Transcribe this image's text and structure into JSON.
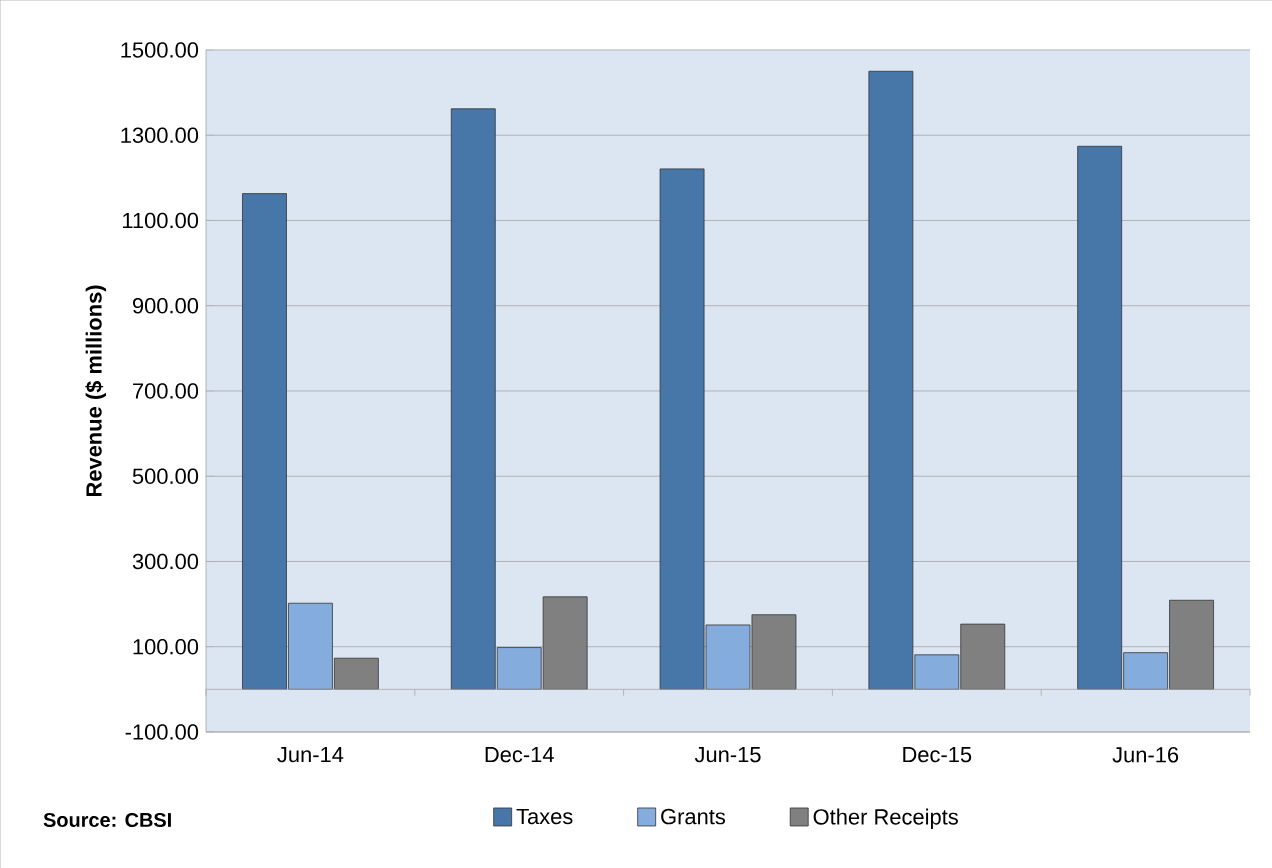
{
  "chart_data": {
    "type": "bar",
    "ylabel": "Revenue ($ millions)",
    "categories": [
      "Jun-14",
      "Dec-14",
      "Jun-15",
      "Dec-15",
      "Jun-16"
    ],
    "series": [
      {
        "name": "Taxes",
        "color": "#4677a8",
        "values": [
          1163,
          1362,
          1221,
          1450,
          1274
        ]
      },
      {
        "name": "Grants",
        "color": "#84acdc",
        "values": [
          202,
          98,
          151,
          81,
          86
        ]
      },
      {
        "name": "Other Receipts",
        "color": "#808080",
        "values": [
          73,
          217,
          175,
          153,
          209
        ]
      }
    ],
    "ylim": [
      -100,
      1500
    ],
    "yticks": [
      {
        "value": -100,
        "label": "-100.00"
      },
      {
        "value": 100,
        "label": "100.00"
      },
      {
        "value": 300,
        "label": "300.00"
      },
      {
        "value": 500,
        "label": "500.00"
      },
      {
        "value": 700,
        "label": "700.00"
      },
      {
        "value": 900,
        "label": "900.00"
      },
      {
        "value": 1100,
        "label": "1100.00"
      },
      {
        "value": 1300,
        "label": "1300.00"
      },
      {
        "value": 1500,
        "label": "1500.00"
      }
    ],
    "grid": "y",
    "legend": "bottom",
    "annotations": [
      "Source: CBSI"
    ]
  }
}
